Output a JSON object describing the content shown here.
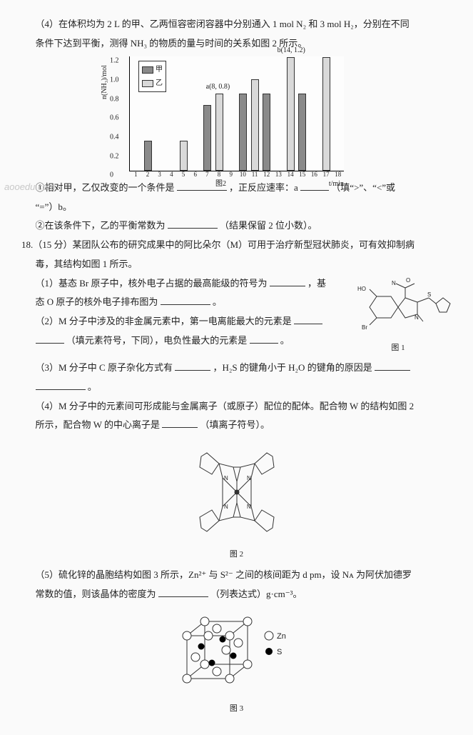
{
  "watermark": "aooedu.com",
  "q4_intro_l1": "（4）在体积均为 2 L 的甲、乙两恒容密闭容器中分别通入 1 mol N₂ 和 3 mol H₂，分别在不同",
  "q4_intro_l2": "条件下达到平衡，测得 NH₃ 的物质的量与时间的关系如图 2 所示。",
  "chart": {
    "ylabel": "n(NH₃)/mol",
    "ylim": [
      0,
      1.2
    ],
    "yticks": [
      "0",
      "0.2",
      "0.4",
      "0.6",
      "0.8",
      "1.0",
      "1.2"
    ],
    "xticks": [
      "1",
      "2",
      "3",
      "4",
      "5",
      "6",
      "7",
      "8",
      "9",
      "10",
      "11",
      "12",
      "13",
      "14",
      "15",
      "16",
      "17",
      "18"
    ],
    "xlabel_left": "图2",
    "xlabel_right": "t/min",
    "legend": {
      "a": "甲",
      "b": "乙"
    },
    "series_a_color": "#8a8a8a",
    "series_b_color": "#d9d9d9",
    "border_color": "#333333",
    "pairs": [
      {
        "x": 2,
        "a": 0.3,
        "b": null
      },
      {
        "x": 5,
        "a": null,
        "b": 0.3
      },
      {
        "x": 7,
        "a": 0.68,
        "b": null
      },
      {
        "x": 8,
        "a": null,
        "b": 0.8,
        "label_b": "a(8, 0.8)"
      },
      {
        "x": 10,
        "a": 0.8,
        "b": null
      },
      {
        "x": 11,
        "a": null,
        "b": 0.95
      },
      {
        "x": 12,
        "a": 0.8,
        "b": null
      },
      {
        "x": 14,
        "a": null,
        "b": 1.18,
        "label_b": "b(14, 1.2)"
      },
      {
        "x": 15,
        "a": 0.8,
        "b": null
      },
      {
        "x": 17,
        "a": null,
        "b": 1.18
      }
    ]
  },
  "q4_s1_a": "①相对甲，乙仅改变的一个条件是",
  "q4_s1_b": "，正反应速率：a",
  "q4_s1_c": "（填“>”、“<”或",
  "q4_s1_d": "“=”）b。",
  "q4_s2_a": "②在该条件下，乙的平衡常数为",
  "q4_s2_b": "（结果保留 2 位小数）。",
  "q18_head_l1": "18.（15 分）某团队公布的研究成果中的阿比朵尔（M）可用于治疗新型冠状肺炎，可有效抑制病",
  "q18_head_l2": "毒，其结构如图 1 所示。",
  "q18_1a": "（1）基态 Br 原子中，核外电子占据的最高能级的符号为",
  "q18_1b": "，基",
  "q18_1c": "态 O 原子的核外电子排布图为",
  "q18_1d": "。",
  "q18_2a": "（2）M 分子中涉及的非金属元素中，第一电离能最大的元素是",
  "q18_2b": "（填元素符号，下同），电负性最大的元素是",
  "q18_2c": "。",
  "fig1_caption": "图 1",
  "mol_labels": {
    "HO": "HO",
    "Br": "Br",
    "N": "N",
    "O": "O",
    "S": "S"
  },
  "q18_3a": "（3）M 分子中 C 原子杂化方式有",
  "q18_3b": "，H₂S 的键角小于 H₂O 的键角的原因是",
  "q18_3c": "。",
  "q18_4_l1a": "（4）M 分子中的元素间可形成能与金属离子（或原子）配位的配体。配合物 W 的结构如图 2",
  "q18_4_l2a": "所示，配合物 W 的中心离子是",
  "q18_4_l2b": "（填离子符号）。",
  "fig2_caption": "图 2",
  "q18_5_l1": "（5）硫化锌的晶胞结构如图 3 所示，Zn²⁺ 与 S²⁻ 之间的核间距为 d pm，设 Nᴀ 为阿伏加德罗",
  "q18_5_l2a": "常数的值，则该晶体的密度为",
  "q18_5_l2b": "（列表达式）g·cm⁻³。",
  "fig3_caption": "图 3",
  "fig3_legend": {
    "zn": "Zn",
    "s": "S"
  },
  "fig3_colors": {
    "zn_fill": "#ffffff",
    "s_fill": "#000000",
    "stroke": "#333333"
  }
}
